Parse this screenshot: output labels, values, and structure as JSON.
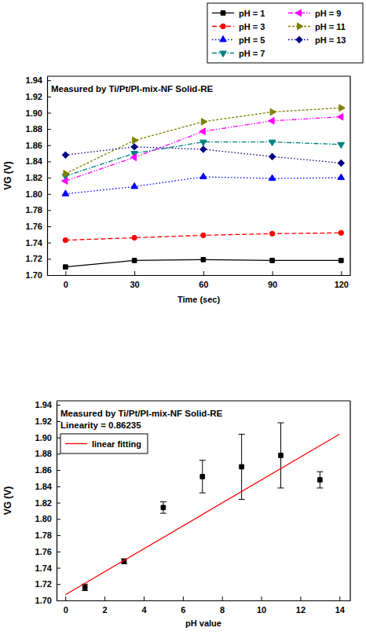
{
  "chart_data": [
    {
      "type": "line",
      "title": "Measured by Ti/Pt/PI-mix-NF Solid-RE",
      "x_label": "Time (sec)",
      "y_label": "VG (V)",
      "x": [
        0,
        30,
        60,
        90,
        120
      ],
      "xlim": [
        -8,
        124
      ],
      "xticks": [
        0,
        30,
        60,
        90,
        120
      ],
      "ylim": [
        1.7,
        1.945
      ],
      "yticks": [
        {
          "value": 1.7,
          "label": "1.70"
        },
        1.72,
        1.74,
        1.76,
        1.78,
        {
          "value": 1.8,
          "label": "1.80"
        },
        1.82,
        1.84,
        1.86,
        1.88,
        {
          "value": 1.9,
          "label": "1.90"
        },
        1.92,
        1.94
      ],
      "legend": "top-right",
      "grid": false,
      "series": [
        {
          "name": "pH = 1",
          "color": "#000000",
          "marker": "square",
          "line_style": "solid",
          "values": [
            1.71,
            1.718,
            1.719,
            1.718,
            1.718
          ]
        },
        {
          "name": "pH = 3",
          "color": "#ff0000",
          "marker": "circle",
          "line_style": "dashed",
          "values": [
            1.743,
            1.746,
            1.749,
            1.751,
            1.752
          ]
        },
        {
          "name": "pH = 5",
          "color": "#0000ff",
          "marker": "triangle-up",
          "line_style": "dotted",
          "values": [
            1.8,
            1.809,
            1.821,
            1.819,
            1.82
          ]
        },
        {
          "name": "pH = 7",
          "color": "#008080",
          "marker": "triangle-down",
          "line_style": "dash-dot",
          "values": [
            1.822,
            1.85,
            1.864,
            1.864,
            1.861
          ]
        },
        {
          "name": "pH = 9",
          "color": "#ff00ff",
          "marker": "triangle-left",
          "line_style": "dash-dot-dot",
          "values": [
            1.816,
            1.845,
            1.877,
            1.89,
            1.895
          ]
        },
        {
          "name": "pH = 11",
          "color": "#808000",
          "marker": "triangle-right",
          "line_style": "short-dash",
          "values": [
            1.825,
            1.866,
            1.889,
            1.901,
            1.906
          ]
        },
        {
          "name": "pH = 13",
          "color": "#000080",
          "marker": "diamond",
          "line_style": "dotted",
          "values": [
            1.848,
            1.858,
            1.855,
            1.846,
            1.838
          ]
        }
      ]
    },
    {
      "type": "scatter",
      "title": "Measured by Ti/Pt/PI-mix-NF Solid-RE",
      "annotations": [
        "Linearity = 0.86235"
      ],
      "x_label": "pH value",
      "y_label": "VG (V)",
      "xlim": [
        -0.45,
        14.55
      ],
      "xticks": [
        0,
        2,
        4,
        6,
        8,
        10,
        12,
        14
      ],
      "ylim": [
        1.7,
        1.945
      ],
      "yticks": [
        {
          "value": 1.7,
          "label": "1.70"
        },
        1.72,
        1.74,
        1.76,
        1.78,
        {
          "value": 1.8,
          "label": "1.80"
        },
        1.82,
        1.84,
        1.86,
        1.88,
        {
          "value": 1.9,
          "label": "1.90"
        },
        1.92,
        1.94
      ],
      "legend": "top-left",
      "grid": false,
      "series": [
        {
          "type": "scatter",
          "color": "#000000",
          "marker": "square",
          "x": [
            1,
            3,
            5,
            7,
            9,
            11,
            13
          ],
          "values": [
            1.716,
            1.748,
            1.814,
            1.852,
            1.864,
            1.878,
            1.848
          ],
          "errors": [
            0.004,
            0.003,
            0.007,
            0.02,
            0.04,
            0.04,
            0.01
          ]
        },
        {
          "type": "line",
          "name": "linear fitting",
          "color": "#ff0000",
          "line_style": "solid",
          "x": [
            0,
            14
          ],
          "values": [
            1.707,
            1.904
          ]
        }
      ]
    }
  ]
}
